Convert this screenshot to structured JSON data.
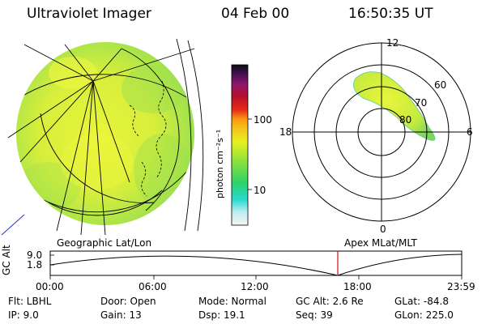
{
  "header": {
    "instrument": "Ultraviolet Imager",
    "date": "04 Feb 00",
    "time": "16:50:35 UT"
  },
  "colorbar": {
    "label": "photon cm⁻²s⁻¹",
    "ticks": [
      "100",
      "10"
    ]
  },
  "polar_plot": {
    "hours": [
      "12",
      "18",
      "6",
      "0"
    ],
    "latitudes": [
      "60",
      "70",
      "80"
    ]
  },
  "labels": {
    "geographic": "Geographic Lat/Lon",
    "apex": "Apex MLat/MLT"
  },
  "altitude_plot": {
    "ylabel": "GC Alt",
    "yticks": [
      "9.0",
      "1.8"
    ],
    "xticks": [
      "00:00",
      "06:00",
      "12:00",
      "18:00",
      "23:59"
    ]
  },
  "status": {
    "flt": "Flt: LBHL",
    "ip": "IP:  9.0",
    "door": "Door: Open",
    "gain": "Gain: 13",
    "mode": "Mode: Normal",
    "dsp": "Dsp:   19.1",
    "gcalt": "GC Alt: 2.6 Re",
    "seq": "Seq: 39",
    "glat": "GLat: -84.8",
    "glon": "GLon: 225.0"
  }
}
